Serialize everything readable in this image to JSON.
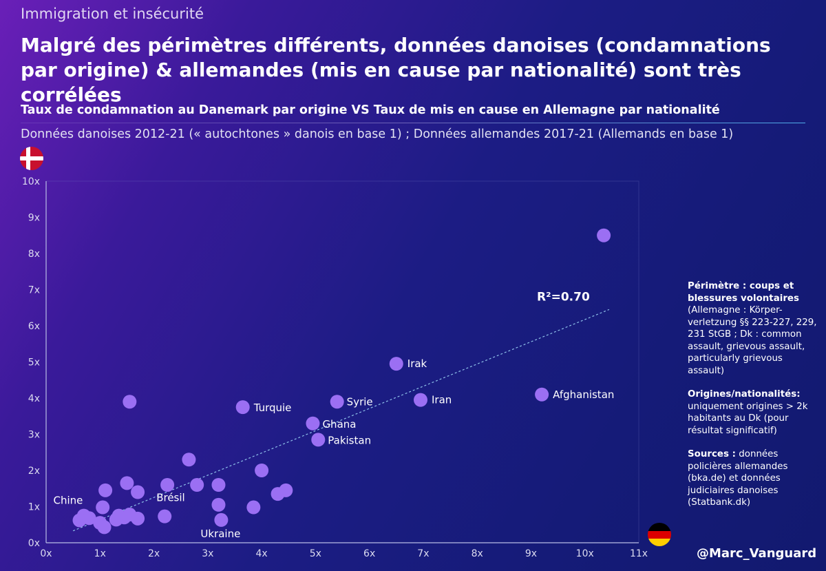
{
  "header": {
    "kicker": "Immigration et insécurité",
    "headline": "Malgré des périmètres différents, données danoises (condamnations par origine) & allemandes (mis en cause par nationalité) sont très corrélées",
    "subtitle": "Taux de condamnation au Danemark par origine VS Taux de mis en cause en Allemagne par nationalité",
    "basis": "Données danoises 2012-21 (« autochtones » danois en base 1) ; Données allemandes 2017-21 (Allemands en base 1)"
  },
  "flags": {
    "y_axis_flag": "denmark-flag",
    "x_axis_flag": "germany-flag",
    "colors": {
      "denmark_red": "#c8102e",
      "germany_black": "#000000",
      "germany_red": "#dd0000",
      "germany_gold": "#ffce00"
    }
  },
  "notes": {
    "perimetre_title": "Périmètre : coups et blessures volontaires",
    "perimetre_text": "(Allemagne : Körper-verletzung §§ 223-227, 229, 231 StGB ; Dk : common assault, grievous assault, particularly grievous assault)",
    "origines_title": "Origines/nationalités:",
    "origines_text": "uniquement origines > 2k habitants au Dk (pour résultat significatif)",
    "sources_title": "Sources :",
    "sources_text": "données policières allemandes (bka.de) et données judiciaires danoises (Statbank.dk)"
  },
  "author": "@Marc_Vanguard",
  "colors": {
    "point": "#9b6ff3",
    "trend": "#8fc2ea",
    "text": "#ffffff"
  },
  "chart_data": {
    "type": "scatter",
    "title": "Taux de condamnation au Danemark par origine VS Taux de mis en cause en Allemagne par nationalité",
    "xlabel": "",
    "ylabel": "",
    "xlim": [
      0,
      11
    ],
    "ylim": [
      0,
      10
    ],
    "xticks": [
      "0x",
      "1x",
      "2x",
      "3x",
      "4x",
      "5x",
      "6x",
      "7x",
      "8x",
      "9x",
      "10x",
      "11x"
    ],
    "yticks": [
      "0x",
      "1x",
      "2x",
      "3x",
      "4x",
      "5x",
      "6x",
      "7x",
      "8x",
      "9x",
      "10x"
    ],
    "trendline": {
      "label": "R²=0.70",
      "x": [
        0.5,
        10.45
      ],
      "y": [
        0.33,
        6.45
      ]
    },
    "points": [
      {
        "x": 10.35,
        "y": 8.5,
        "label": ""
      },
      {
        "x": 6.5,
        "y": 4.95,
        "label": "Irak"
      },
      {
        "x": 9.2,
        "y": 4.1,
        "label": "Afghanistan"
      },
      {
        "x": 6.95,
        "y": 3.95,
        "label": "Iran"
      },
      {
        "x": 5.4,
        "y": 3.9,
        "label": "Syrie"
      },
      {
        "x": 3.65,
        "y": 3.75,
        "label": "Turquie"
      },
      {
        "x": 4.95,
        "y": 3.3,
        "label": "Ghana"
      },
      {
        "x": 5.05,
        "y": 2.85,
        "label": "Pakistan"
      },
      {
        "x": 1.55,
        "y": 3.9,
        "label": ""
      },
      {
        "x": 2.65,
        "y": 2.3,
        "label": ""
      },
      {
        "x": 4.0,
        "y": 2.0,
        "label": ""
      },
      {
        "x": 2.25,
        "y": 1.6,
        "label": ""
      },
      {
        "x": 2.8,
        "y": 1.6,
        "label": ""
      },
      {
        "x": 3.2,
        "y": 1.6,
        "label": ""
      },
      {
        "x": 1.5,
        "y": 1.65,
        "label": ""
      },
      {
        "x": 1.1,
        "y": 1.45,
        "label": ""
      },
      {
        "x": 1.7,
        "y": 1.4,
        "label": ""
      },
      {
        "x": 4.45,
        "y": 1.45,
        "label": ""
      },
      {
        "x": 4.3,
        "y": 1.35,
        "label": ""
      },
      {
        "x": 3.2,
        "y": 1.05,
        "label": ""
      },
      {
        "x": 3.85,
        "y": 0.98,
        "label": ""
      },
      {
        "x": 1.05,
        "y": 0.98,
        "label": ""
      },
      {
        "x": 2.2,
        "y": 0.73,
        "label": "Brésil"
      },
      {
        "x": 3.25,
        "y": 0.63,
        "label": "Ukraine"
      },
      {
        "x": 0.62,
        "y": 0.62,
        "label": "Chine"
      },
      {
        "x": 0.7,
        "y": 0.75,
        "label": ""
      },
      {
        "x": 0.8,
        "y": 0.68,
        "label": ""
      },
      {
        "x": 1.35,
        "y": 0.75,
        "label": ""
      },
      {
        "x": 1.55,
        "y": 0.78,
        "label": ""
      },
      {
        "x": 1.45,
        "y": 0.7,
        "label": ""
      },
      {
        "x": 1.3,
        "y": 0.64,
        "label": ""
      },
      {
        "x": 1.7,
        "y": 0.67,
        "label": ""
      },
      {
        "x": 1.0,
        "y": 0.55,
        "label": ""
      },
      {
        "x": 1.08,
        "y": 0.43,
        "label": ""
      }
    ]
  }
}
